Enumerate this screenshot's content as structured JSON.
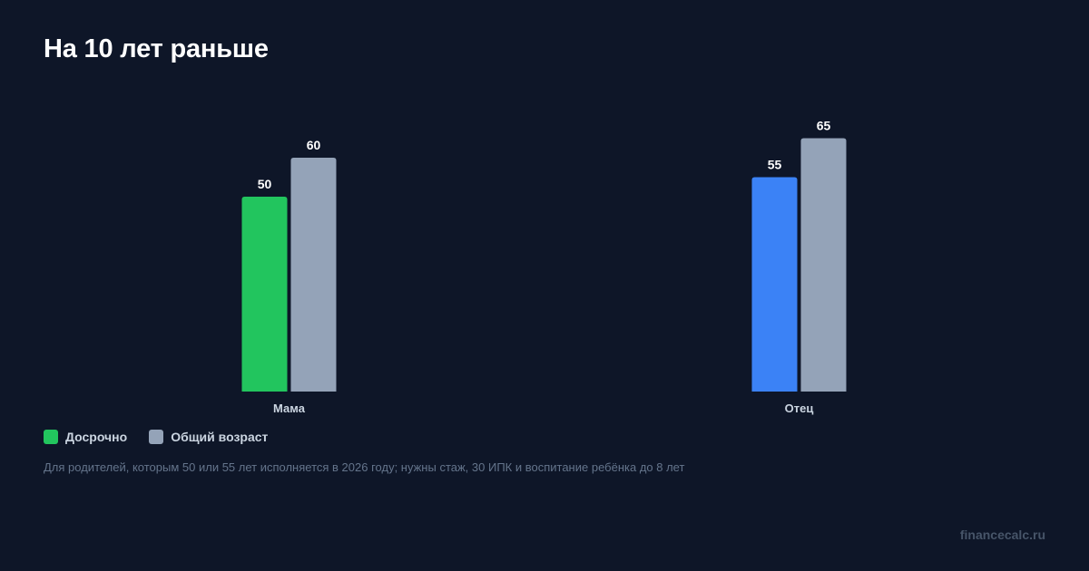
{
  "title": "На 10 лет раньше",
  "chart_data": {
    "type": "bar",
    "categories": [
      "Мама",
      "Отец"
    ],
    "series": [
      {
        "name": "Досрочно",
        "values": [
          50,
          55
        ],
        "colors": [
          "#22c55e",
          "#3b82f6"
        ]
      },
      {
        "name": "Общий возраст",
        "values": [
          60,
          65
        ],
        "colors": [
          "#94a3b8",
          "#94a3b8"
        ]
      }
    ],
    "ylim": [
      0,
      70
    ],
    "grid": false,
    "legend": "bottom-left"
  },
  "legend": [
    {
      "label": "Досрочно",
      "color": "#22c55e"
    },
    {
      "label": "Общий возраст",
      "color": "#94a3b8"
    }
  ],
  "note": "Для родителей, которым 50 или 55 лет исполняется в 2026 году; нужны стаж, 30 ИПК и воспитание ребёнка до 8 лет",
  "brand": "financecalc.ru"
}
